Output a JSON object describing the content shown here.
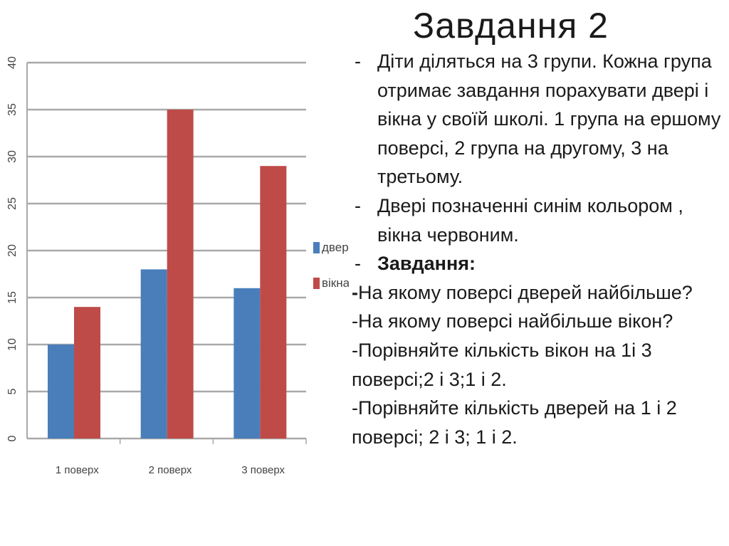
{
  "slide": {
    "title": "Завдання 2",
    "bullets": [
      {
        "marker": "-",
        "text": "Діти діляться на 3 групи. Кожна група отримає завдання порахувати двері і вікна у своїй школі. 1 група на ершому поверсі, 2 група на другому, 3 на третьому."
      },
      {
        "marker": "-",
        "text": "Двері позначенні синім кольором , вікна червоним."
      },
      {
        "marker": "-",
        "text": "Завдання:"
      }
    ],
    "questions": [
      {
        "marker": "-",
        "text": "На якому поверсі дверей найбільше?"
      },
      {
        "marker": "",
        "text": "-На якому поверсі найбільше вікон?"
      },
      {
        "marker": "",
        "text": "-Порівняйте кількість вікон на 1і 3 поверсі;2 і 3;1 і 2."
      },
      {
        "marker": "",
        "text": "-Порівняйте кількість дверей на 1 і 2 поверсі; 2 і 3; 1 і 2."
      }
    ]
  },
  "chart_data": {
    "type": "bar",
    "categories": [
      "1 поверх",
      "2 поверх",
      "3 поверх"
    ],
    "series": [
      {
        "name": "двері",
        "color": "#4a7ebb",
        "values": [
          10,
          18,
          16
        ]
      },
      {
        "name": "вікна",
        "color": "#be4b48",
        "values": [
          14,
          35,
          29
        ]
      }
    ],
    "ylim": [
      0,
      40
    ],
    "yticks": [
      "0",
      "5",
      "10",
      "15",
      "20",
      "25",
      "30",
      "35",
      "40"
    ],
    "grid": true,
    "legend": "right"
  }
}
